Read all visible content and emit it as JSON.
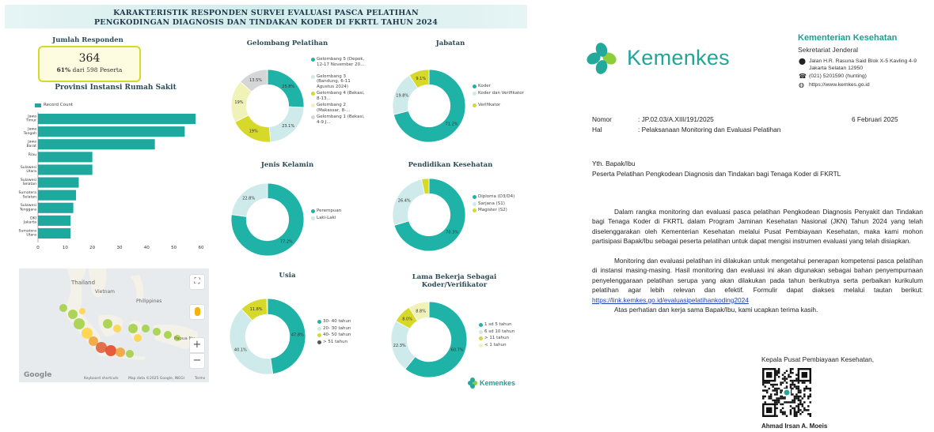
{
  "dashboard": {
    "title_line1": "KARAKTERISTIK RESPONDEN SURVEI EVALUASI PASCA PELATIHAN",
    "title_line2": "PENGKODINGAN DIAGNOSIS DAN TINDAKAN KODER DI FKRTL TAHUN 2024",
    "respondents": {
      "label": "Jumlah Responden",
      "count": "364",
      "pct": "61%",
      "sub_text": "dari 598 Peserta"
    },
    "brand_label": "Kemenkes",
    "colors": {
      "teal": "#1fb3a8",
      "light": "#cfeaea",
      "yellow": "#d7d92a",
      "pale": "#f0f2b8",
      "grey": "#d4d6d8",
      "dark": "#555555"
    },
    "map": {
      "labels": [
        "Thailand",
        "Vietnam",
        "Philippines",
        "Papua Nu"
      ],
      "google": "Google",
      "footer": [
        "Keyboard shortcuts",
        "Map data ©2025 Google, INEGI",
        "Terms"
      ],
      "zoom_in": "+",
      "zoom_out": "−"
    }
  },
  "chart_data": [
    {
      "type": "bar",
      "orientation": "horizontal",
      "title": "Provinsi Instansi Rumah Sakit",
      "legend": [
        "Record Count"
      ],
      "categories": [
        "Jawa Timur",
        "Jawa Tengah",
        "Jawa Barat",
        "Riau",
        "Sulawesi Utara",
        "Sulawesi Selatan",
        "Sumatera Selatan",
        "Sulawesi Tenggara",
        "DKI Jakarta",
        "Sumatera Utara"
      ],
      "values": [
        58,
        54,
        43,
        20,
        20,
        15,
        14,
        13,
        12,
        12
      ],
      "xlim": [
        0,
        60
      ],
      "xticks": [
        0,
        10,
        20,
        30,
        40,
        50,
        60
      ]
    },
    {
      "type": "pie",
      "title": "Gelombang Pelatihan",
      "labels": [
        "Gelombang 5 (Depok, 12-17 November 20...",
        "Gelombang 3 (Bandung, 6-11 Agustus 2024)",
        "Gelombang 4 (Bekasi, 8-13...",
        "Gelombang 2 (Makassar, 8-...",
        "Gelombang 1 (Bekasi, 4-9 J..."
      ],
      "values": [
        25.8,
        23.1,
        19,
        19,
        13.5
      ],
      "slice_labels": [
        "25.8%",
        "23.1%",
        "19%",
        "19%",
        "13.5%"
      ],
      "colors": [
        "#1fb3a8",
        "#cfeaea",
        "#d7d92a",
        "#f0f2b8",
        "#d4d6d8"
      ]
    },
    {
      "type": "pie",
      "title": "Jabatan",
      "labels": [
        "Koder",
        "Koder dan Verifikator",
        "Verifikator"
      ],
      "values": [
        71.2,
        19.8,
        9.1
      ],
      "slice_labels": [
        "71.2%",
        "19.8%",
        "9.1%"
      ],
      "colors": [
        "#1fb3a8",
        "#cfeaea",
        "#d7d92a"
      ]
    },
    {
      "type": "pie",
      "title": "Jenis Kelamin",
      "labels": [
        "Perempuan",
        "Laki-Laki"
      ],
      "values": [
        77.2,
        22.8
      ],
      "slice_labels": [
        "77.2%",
        "22.8%"
      ],
      "colors": [
        "#1fb3a8",
        "#cfeaea"
      ]
    },
    {
      "type": "pie",
      "title": "Pendidikan Kesehatan",
      "labels": [
        "Diploma (D3/D4)",
        "Sarjana (S1)",
        "Magister (S2)"
      ],
      "values": [
        70.3,
        26.4,
        3.3
      ],
      "slice_labels": [
        "70.3%",
        "26.4%",
        ""
      ],
      "colors": [
        "#1fb3a8",
        "#cfeaea",
        "#d7d92a"
      ]
    },
    {
      "type": "pie",
      "title": "Usia",
      "labels": [
        "30- 40 tahun",
        "20- 30 tahun",
        "40- 50 tahun",
        "> 51 tahun"
      ],
      "values": [
        47.8,
        40.1,
        11.8,
        0.3
      ],
      "slice_labels": [
        "47.8%",
        "40.1%",
        "11.8%",
        ""
      ],
      "colors": [
        "#1fb3a8",
        "#cfeaea",
        "#d7d92a",
        "#555555"
      ]
    },
    {
      "type": "pie",
      "title": "Lama Bekerja Sebagai Koder/Verifikator",
      "labels": [
        "1 sd 5 tahun",
        "6 sd 10 tahun",
        "> 11 tahun",
        "< 1 tahun"
      ],
      "values": [
        60.7,
        22.3,
        8.0,
        8.8
      ],
      "slice_labels": [
        "60.7%",
        "22.3%",
        "8.0%",
        "8.8%"
      ],
      "colors": [
        "#1fb3a8",
        "#cfeaea",
        "#d7d92a",
        "#f0f2b8"
      ]
    }
  ],
  "letter": {
    "brand": "Kemenkes",
    "ministry": "Kementerian Kesehatan",
    "dept": "Sekretariat Jenderal",
    "address1": "Jalan H.R. Rasuna Said Blok X-5 Kavling 4-9",
    "address2": "Jakarta Selatan 12950",
    "phone": "(021) 5201590 (hunting)",
    "web": "https://www.kemkes.go.id",
    "nomor_label": "Nomor",
    "nomor_value": ": JP.02.03/A.XIII/191/2025",
    "date": "6 Februari 2025",
    "hal_label": "Hal",
    "hal_value": ": Pelaksanaan Monitoring dan Evaluasi Pelatihan",
    "salutation": "Yth. Bapak/Ibu",
    "recipient": "Peserta Pelatihan Pengkodean Diagnosis dan Tindakan bagi Tenaga Koder di FKRTL",
    "para1": "Dalam rangka monitoring dan evaluasi pasca pelatihan Pengkodean Diagnosis Penyakit dan Tindakan bagi Tenaga Koder di FKRTL dalam Program Jaminan Kesehatan Nasional (JKN) Tahun 2024 yang telah diselenggarakan oleh Kementerian Kesehatan melalui Pusat Pembiayaan Kesehatan, maka kami mohon partisipasi Bapak/Ibu sebagai peserta pelatihan untuk dapat mengisi instrumen evaluasi yang telah disiapkan.",
    "para2": "Monitoring dan evaluasi pelatihan ini dilakukan untuk mengetahui penerapan kompetensi pasca pelatihan di instansi masing-masing. Hasil monitoring dan evaluasi ini akan digunakan sebagai bahan penyempurnaan penyelenggaraan pelatihan serupa yang akan dilakukan pada tahun berikutnya serta perbaikan kurikulum pelatihan agar lebih relevan dan efektif. Formulir dapat diakses melalui tautan berikut:",
    "link": "https://link.kemkes.go.id/evaluasipelatihankoding2024",
    "para3": "Atas perhatian dan kerja sama Bapak/Ibu, kami ucapkan terima kasih.",
    "signer_title": "Kepala Pusat Pembiayaan Kesehatan,",
    "signer_name": "Ahmad Irsan A. Moeis"
  }
}
